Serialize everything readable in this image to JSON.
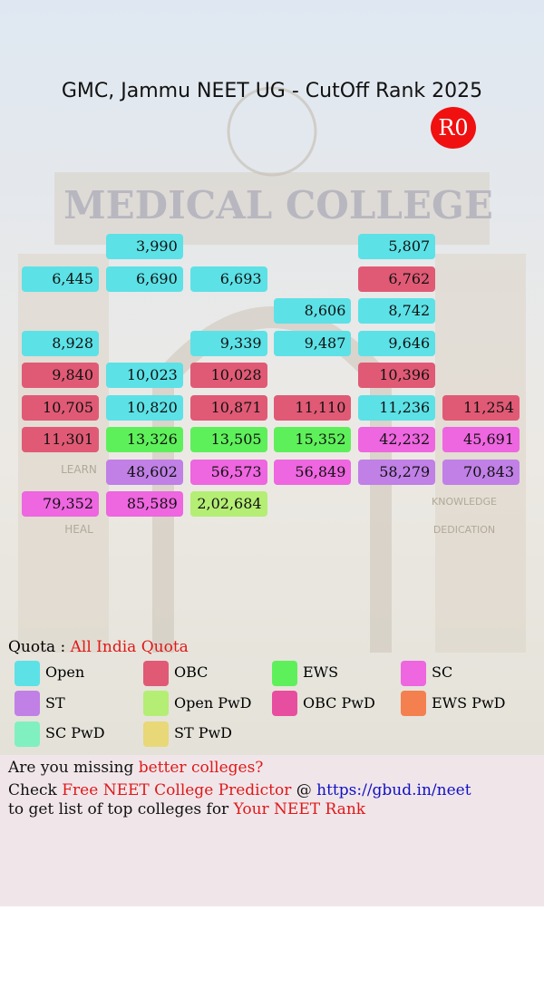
{
  "header": {
    "title": "GMC, Jammu NEET UG - CutOff Rank 2025",
    "badge": "R0"
  },
  "background": {
    "texts": [
      "MEDICAL COLLEGE",
      "LEARN",
      "HEAL",
      "KNOWLEDGE",
      "DEDICATION"
    ]
  },
  "grid": {
    "rows": [
      [
        null,
        {
          "rank": "3,990",
          "color": "#5ce1e6"
        },
        null,
        null,
        {
          "rank": "5,807",
          "color": "#5ce1e6"
        },
        null
      ],
      [
        {
          "rank": "6,445",
          "color": "#5ce1e6"
        },
        {
          "rank": "6,690",
          "color": "#5ce1e6"
        },
        {
          "rank": "6,693",
          "color": "#5ce1e6"
        },
        null,
        {
          "rank": "6,762",
          "color": "#e05a75"
        },
        null
      ],
      [
        null,
        null,
        null,
        {
          "rank": "8,606",
          "color": "#5ce1e6"
        },
        {
          "rank": "8,742",
          "color": "#5ce1e6"
        },
        null
      ],
      [
        {
          "rank": "8,928",
          "color": "#5ce1e6"
        },
        null,
        {
          "rank": "9,339",
          "color": "#5ce1e6"
        },
        {
          "rank": "9,487",
          "color": "#5ce1e6"
        },
        {
          "rank": "9,646",
          "color": "#5ce1e6"
        },
        null
      ],
      [
        {
          "rank": "9,840",
          "color": "#e05a75"
        },
        {
          "rank": "10,023",
          "color": "#5ce1e6"
        },
        {
          "rank": "10,028",
          "color": "#e05a75"
        },
        null,
        {
          "rank": "10,396",
          "color": "#e05a75"
        },
        null
      ],
      [
        {
          "rank": "10,705",
          "color": "#e05a75"
        },
        {
          "rank": "10,820",
          "color": "#5ce1e6"
        },
        {
          "rank": "10,871",
          "color": "#e05a75"
        },
        {
          "rank": "11,110",
          "color": "#e05a75"
        },
        {
          "rank": "11,236",
          "color": "#5ce1e6"
        },
        {
          "rank": "11,254",
          "color": "#e05a75"
        }
      ],
      [
        {
          "rank": "11,301",
          "color": "#e05a75"
        },
        {
          "rank": "13,326",
          "color": "#5ef05a"
        },
        {
          "rank": "13,505",
          "color": "#5ef05a"
        },
        {
          "rank": "15,352",
          "color": "#5ef05a"
        },
        {
          "rank": "42,232",
          "color": "#ee66e0"
        },
        {
          "rank": "45,691",
          "color": "#ee66e0"
        }
      ],
      [
        null,
        {
          "rank": "48,602",
          "color": "#c080e6"
        },
        {
          "rank": "56,573",
          "color": "#ee66e0"
        },
        {
          "rank": "56,849",
          "color": "#ee66e0"
        },
        {
          "rank": "58,279",
          "color": "#c080e6"
        },
        {
          "rank": "70,843",
          "color": "#c080e6"
        }
      ],
      [
        {
          "rank": "79,352",
          "color": "#ee66e0"
        },
        {
          "rank": "85,589",
          "color": "#ee66e0"
        },
        {
          "rank": "2,02,684",
          "color": "#b4ee74"
        },
        null,
        null,
        null
      ]
    ]
  },
  "quota": {
    "label": "Quota : ",
    "value": "All India Quota"
  },
  "legend": [
    {
      "name": "Open",
      "color": "#5ce1e6"
    },
    {
      "name": "OBC",
      "color": "#e05a75"
    },
    {
      "name": "EWS",
      "color": "#5ef05a"
    },
    {
      "name": "SC",
      "color": "#ee66e0"
    },
    {
      "name": "ST",
      "color": "#c080e6"
    },
    {
      "name": "Open PwD",
      "color": "#b4ee74"
    },
    {
      "name": "OBC PwD",
      "color": "#e84ea0"
    },
    {
      "name": "EWS PwD",
      "color": "#f48050"
    },
    {
      "name": "SC PwD",
      "color": "#80f0c0"
    },
    {
      "name": "ST PwD",
      "color": "#e8d878"
    }
  ],
  "footer": {
    "line1": [
      "Are you missing ",
      "better colleges?"
    ],
    "line2": [
      "Check ",
      "Free NEET College Predictor",
      " @ ",
      "https://gbud.in/neet"
    ],
    "line3": [
      "to get list of top colleges for ",
      "Your NEET Rank"
    ]
  }
}
